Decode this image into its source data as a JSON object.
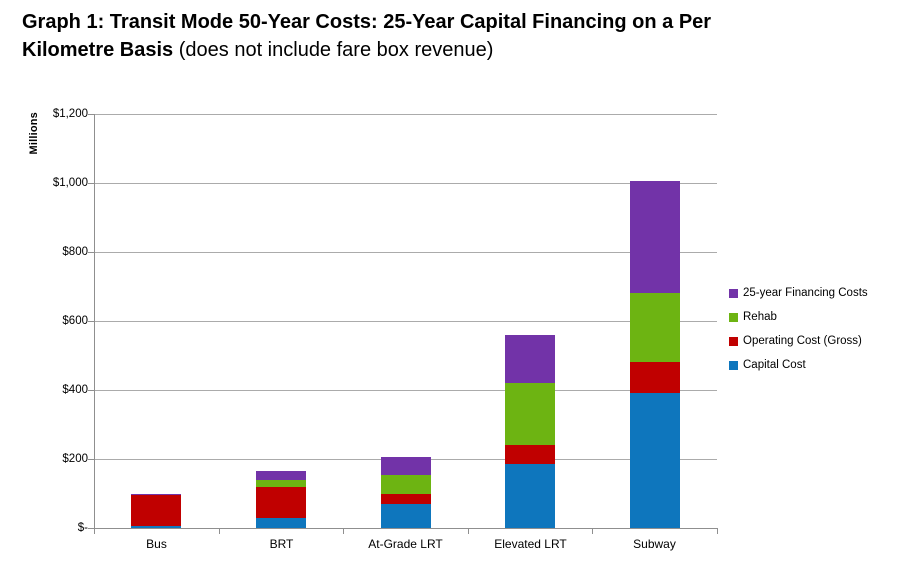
{
  "title": {
    "bold_line1": "Graph 1: Transit Mode 50-Year Costs: 25-Year Capital Financing on a Per",
    "bold_line2": "Kilometre Basis",
    "normal_line2": "(does not include fare box revenue)"
  },
  "chart_data": {
    "type": "bar",
    "stacked": true,
    "title": "Graph 1: Transit Mode 50-Year Costs: 25-Year Capital Financing on a Per Kilometre Basis (does not include fare box revenue)",
    "units": "millions of dollars",
    "xlabel": "",
    "ylabel": "Millions",
    "ylim": [
      0,
      1200
    ],
    "ytick_interval": 200,
    "ytick_labels": [
      "$-",
      "$200",
      "$400",
      "$600",
      "$800",
      "$1,000",
      "$1,200"
    ],
    "grid": true,
    "legend_position": "right",
    "categories": [
      "Bus",
      "BRT",
      "At-Grade LRT",
      "Elevated LRT",
      "Subway"
    ],
    "series": [
      {
        "name": "Capital Cost",
        "color": "#0e76bd",
        "values": [
          5,
          30,
          70,
          185,
          390
        ]
      },
      {
        "name": "Operating Cost (Gross)",
        "color": "#c00000",
        "values": [
          90,
          90,
          30,
          55,
          90
        ]
      },
      {
        "name": "Rehab",
        "color": "#6db412",
        "values": [
          0,
          20,
          55,
          180,
          200
        ]
      },
      {
        "name": "25-year Financing Costs",
        "color": "#7233a8",
        "values": [
          5,
          25,
          50,
          140,
          325
        ]
      }
    ],
    "totals": [
      100,
      165,
      205,
      560,
      1005
    ],
    "legend_order": [
      "25-year Financing Costs",
      "Rehab",
      "Operating Cost (Gross)",
      "Capital Cost"
    ]
  }
}
